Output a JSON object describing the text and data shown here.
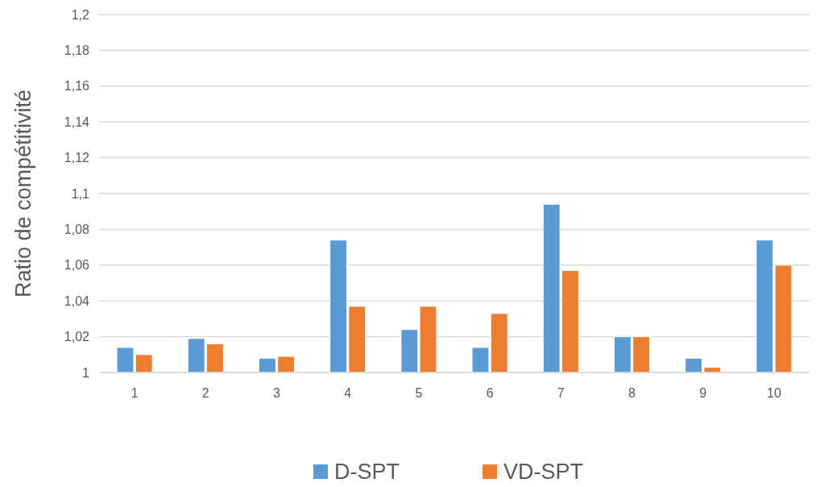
{
  "chart_data": {
    "type": "bar",
    "ylabel": "Ratio de compétitivité",
    "categories": [
      "1",
      "2",
      "3",
      "4",
      "5",
      "6",
      "7",
      "8",
      "9",
      "10"
    ],
    "series": [
      {
        "name": "D-SPT",
        "color": "#5b9bd5",
        "values": [
          1.014,
          1.019,
          1.008,
          1.074,
          1.024,
          1.014,
          1.094,
          1.02,
          1.008,
          1.074
        ]
      },
      {
        "name": "VD-SPT",
        "color": "#ed7d31",
        "values": [
          1.01,
          1.016,
          1.009,
          1.037,
          1.037,
          1.033,
          1.057,
          1.02,
          1.003,
          1.06
        ]
      }
    ],
    "ylim": [
      1,
      1.2
    ],
    "yticks": [
      1,
      {
        "value": 1.02,
        "label": "1,02"
      },
      {
        "value": 1.04,
        "label": "1,04"
      },
      {
        "value": 1.06,
        "label": "1,06"
      },
      {
        "value": 1.08,
        "label": "1,08"
      },
      {
        "value": 1.1,
        "label": "1,1"
      },
      {
        "value": 1.12,
        "label": "1,12"
      },
      {
        "value": 1.14,
        "label": "1,14"
      },
      {
        "value": 1.16,
        "label": "1,16"
      },
      {
        "value": 1.18,
        "label": "1,18"
      },
      {
        "value": 1.2,
        "label": "1,2"
      }
    ],
    "grid": "y",
    "legend": "bottom"
  }
}
